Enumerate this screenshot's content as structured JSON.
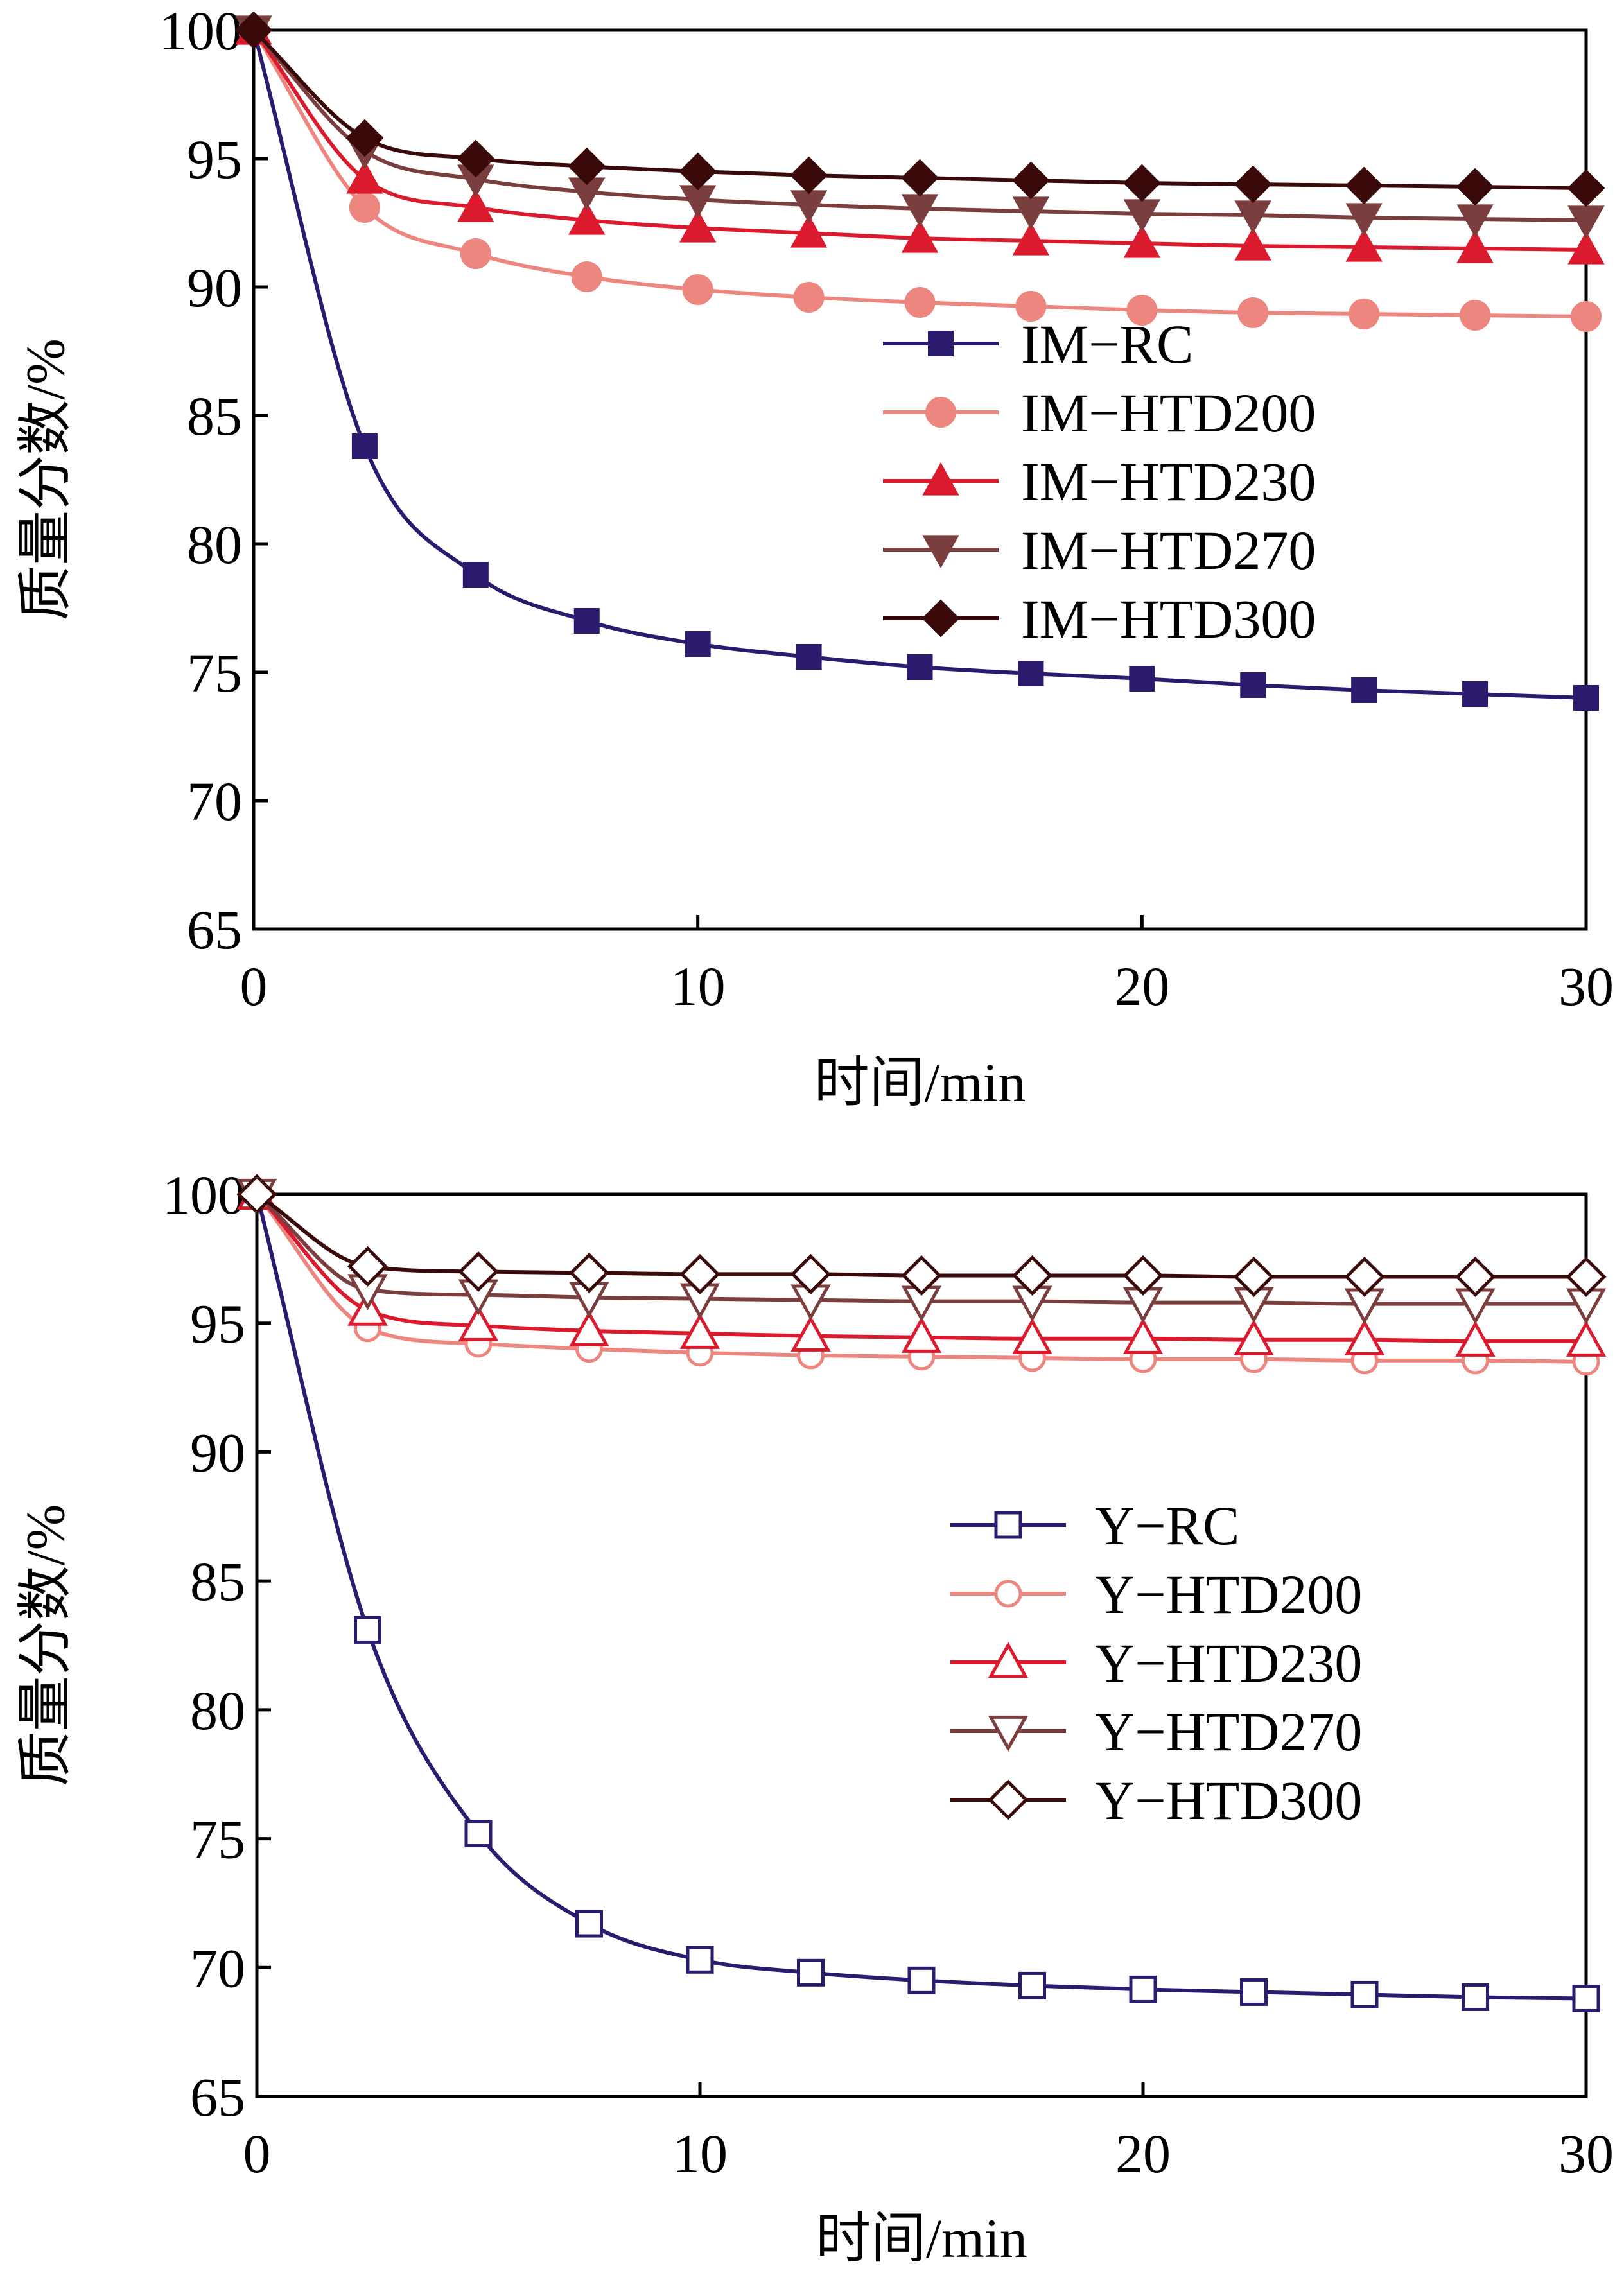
{
  "chart_data": [
    {
      "type": "line",
      "xlabel": "时间/min",
      "ylabel": "质量分数/%",
      "xlim": [
        0,
        30
      ],
      "ylim": [
        65,
        100
      ],
      "xticks": [
        "0",
        "10",
        "20",
        "30"
      ],
      "yticks": [
        "65",
        "70",
        "75",
        "80",
        "85",
        "90",
        "95",
        "100"
      ],
      "x": [
        0,
        2.5,
        5,
        7.5,
        10,
        12.5,
        15,
        17.5,
        20,
        22.5,
        25,
        27.5,
        30
      ],
      "legend_position": "center-right",
      "marker_fill": "solid",
      "series": [
        {
          "name": "IM−RC",
          "color": "#2c1a6e",
          "marker": "square",
          "values": [
            100,
            83.8,
            78.8,
            77.0,
            76.1,
            75.6,
            75.2,
            74.95,
            74.75,
            74.5,
            74.3,
            74.15,
            74.0
          ]
        },
        {
          "name": "IM−HTD200",
          "color": "#ee8680",
          "marker": "circle",
          "values": [
            100,
            93.1,
            91.3,
            90.4,
            89.9,
            89.6,
            89.4,
            89.25,
            89.1,
            89.0,
            88.95,
            88.9,
            88.85
          ]
        },
        {
          "name": "IM−HTD230",
          "color": "#dc1a2e",
          "marker": "triangle-up",
          "values": [
            100,
            94.2,
            93.1,
            92.6,
            92.3,
            92.1,
            91.9,
            91.8,
            91.7,
            91.6,
            91.55,
            91.5,
            91.45
          ]
        },
        {
          "name": "IM−HTD270",
          "color": "#7a3e3e",
          "marker": "triangle-down",
          "values": [
            100,
            95.3,
            94.2,
            93.7,
            93.4,
            93.2,
            93.05,
            92.95,
            92.85,
            92.8,
            92.7,
            92.65,
            92.6
          ]
        },
        {
          "name": "IM−HTD300",
          "color": "#3a0a0a",
          "marker": "diamond",
          "values": [
            100,
            95.8,
            95.0,
            94.7,
            94.5,
            94.35,
            94.25,
            94.15,
            94.05,
            94.0,
            93.95,
            93.9,
            93.85
          ]
        }
      ]
    },
    {
      "type": "line",
      "xlabel": "时间/min",
      "ylabel": "质量分数/%",
      "xlim": [
        0,
        30
      ],
      "ylim": [
        65,
        100
      ],
      "xticks": [
        "0",
        "10",
        "20",
        "30"
      ],
      "yticks": [
        "65",
        "70",
        "75",
        "80",
        "85",
        "90",
        "95",
        "100"
      ],
      "x": [
        0,
        2.5,
        5,
        7.5,
        10,
        12.5,
        15,
        17.5,
        20,
        22.5,
        25,
        27.5,
        30
      ],
      "legend_position": "center-right",
      "marker_fill": "hollow",
      "series": [
        {
          "name": "Y−RC",
          "color": "#2c1a6e",
          "marker": "square",
          "values": [
            100,
            83.1,
            75.2,
            71.7,
            70.3,
            69.8,
            69.5,
            69.3,
            69.15,
            69.05,
            68.95,
            68.85,
            68.8
          ]
        },
        {
          "name": "Y−HTD200",
          "color": "#ee8680",
          "marker": "circle",
          "values": [
            100,
            94.8,
            94.2,
            94.0,
            93.85,
            93.75,
            93.7,
            93.65,
            93.6,
            93.6,
            93.55,
            93.55,
            93.5
          ]
        },
        {
          "name": "Y−HTD230",
          "color": "#dc1a2e",
          "marker": "triangle-up",
          "values": [
            100,
            95.5,
            94.9,
            94.7,
            94.6,
            94.5,
            94.45,
            94.4,
            94.4,
            94.35,
            94.35,
            94.3,
            94.3
          ]
        },
        {
          "name": "Y−HTD270",
          "color": "#7a3e3e",
          "marker": "triangle-down",
          "values": [
            100,
            96.3,
            96.1,
            96.0,
            95.95,
            95.9,
            95.85,
            95.85,
            95.8,
            95.8,
            95.75,
            95.75,
            95.75
          ]
        },
        {
          "name": "Y−HTD300",
          "color": "#3a0a0a",
          "marker": "diamond",
          "values": [
            100,
            97.2,
            97.0,
            96.95,
            96.9,
            96.9,
            96.85,
            96.85,
            96.85,
            96.8,
            96.8,
            96.8,
            96.8
          ]
        }
      ]
    }
  ]
}
